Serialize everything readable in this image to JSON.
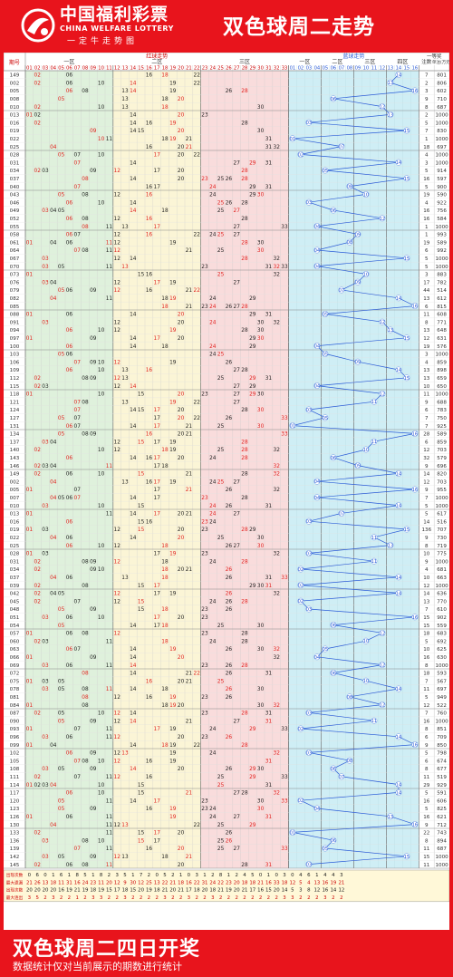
{
  "header": {
    "brand_cn": "中国福利彩票",
    "brand_en": "CHINA WELFARE LOTTERY",
    "slogan": "一定牛走势图",
    "title": "双色球周二走势"
  },
  "footer": {
    "headline": "双色球周二四日开奖",
    "note": "数据统计仅对当前展示的期数进行统计"
  },
  "colors": {
    "brand_red": "#e8141c",
    "zone1": "#dff1dc",
    "zone2": "#fbf5d6",
    "zone3": "#f9dcdc",
    "blue_zone": "#cfeef5",
    "blue_line": "#2a5bd7",
    "red_number": "#e0201e",
    "black_number": "#222222"
  },
  "chart_data": {
    "type": "table",
    "labels": {
      "issue": "期号",
      "red_trend": "红球走势",
      "blue_trend": "蓝球走势",
      "first_prize": "一等奖",
      "count": "注数",
      "amount": "单注(万元)",
      "zone1": "一区",
      "zone2": "二区",
      "zone3": "三区",
      "blue_z1": "一区",
      "blue_z2": "二区",
      "blue_z3": "三区",
      "blue_z4": "四区"
    },
    "issues": [
      "149",
      "002",
      "005",
      "008",
      "010",
      "013",
      "016",
      "019",
      "022",
      "025",
      "028",
      "031",
      "034",
      "037",
      "040",
      "043",
      "046",
      "049",
      "052",
      "055",
      "058",
      "061",
      "064",
      "067",
      "070",
      "073",
      "076",
      "079",
      "082",
      "085",
      "088",
      "091",
      "094",
      "097",
      "100",
      "103",
      "106",
      "109",
      "112",
      "115",
      "118",
      "121",
      "124",
      "127",
      "131",
      "134",
      "137",
      "140",
      "143",
      "146",
      "149",
      "002",
      "005",
      "007",
      "010",
      "013",
      "016",
      "019",
      "022",
      "025",
      "028",
      "031",
      "034",
      "037",
      "039",
      "042",
      "045",
      "048",
      "051",
      "054",
      "057",
      "060",
      "063",
      "066",
      "069",
      "072",
      "075",
      "078",
      "081",
      "084",
      "087",
      "090",
      "093",
      "096",
      "099",
      "102",
      "105",
      "108",
      "111",
      "114",
      "117",
      "120",
      "123",
      "126",
      "130",
      "133",
      "136",
      "139",
      "142",
      "145"
    ],
    "reds": [
      [
        2,
        6,
        16,
        18,
        22
      ],
      [
        2,
        6,
        10,
        14,
        19,
        22
      ],
      [
        6,
        8,
        13,
        14,
        19,
        26,
        28
      ],
      [
        5,
        13,
        18,
        20
      ],
      [
        2,
        10,
        13,
        18,
        30
      ],
      [
        1,
        2,
        14,
        20,
        23
      ],
      [
        2,
        14,
        16,
        19,
        28
      ],
      [
        9,
        14,
        15,
        20,
        30
      ],
      [
        10,
        11,
        18,
        19,
        21,
        31
      ],
      [
        4,
        16,
        20,
        21,
        31,
        32
      ],
      [
        5,
        7,
        10,
        17,
        20,
        22
      ],
      [
        7,
        14,
        27,
        29,
        31
      ],
      [
        2,
        3,
        9,
        12,
        17,
        20,
        28
      ],
      [
        8,
        14,
        20,
        23,
        25,
        26,
        28
      ],
      [
        7,
        16,
        17,
        24,
        29,
        31
      ],
      [
        5,
        8,
        12,
        16,
        24,
        29,
        30
      ],
      [
        6,
        10,
        14,
        25,
        26,
        28
      ],
      [
        3,
        4,
        5,
        14,
        18,
        25,
        27
      ],
      [
        6,
        8,
        12,
        16,
        28
      ],
      [
        8,
        11,
        13,
        17,
        27,
        33
      ],
      [
        6,
        7,
        12,
        16,
        22,
        24,
        25,
        27
      ],
      [
        1,
        4,
        6,
        11,
        12,
        19,
        28,
        30
      ],
      [
        7,
        8,
        11,
        12,
        21,
        25,
        30
      ],
      [
        3,
        12,
        14,
        28,
        32
      ],
      [
        3,
        5,
        11,
        13,
        23,
        31,
        32,
        33
      ],
      [
        1,
        15,
        16,
        25,
        32
      ],
      [
        3,
        4,
        12,
        17,
        19,
        27
      ],
      [
        5,
        6,
        9,
        12,
        16,
        21,
        22
      ],
      [
        4,
        11,
        18,
        19,
        24,
        29
      ],
      [
        18,
        21,
        23,
        24,
        26,
        27,
        28
      ],
      [
        1,
        6,
        14,
        20,
        29,
        31
      ],
      [
        3,
        12,
        20,
        24,
        30,
        32
      ],
      [
        6,
        10,
        12,
        19,
        28,
        30
      ],
      [
        1,
        9,
        14,
        17,
        20,
        29,
        30
      ],
      [
        6,
        14,
        18,
        24,
        29
      ],
      [
        5,
        6,
        24,
        25
      ],
      [
        7,
        9,
        10,
        12,
        19,
        26
      ],
      [
        6,
        10,
        13,
        16,
        27,
        28
      ],
      [
        2,
        8,
        9,
        12,
        13,
        25,
        29,
        31
      ],
      [
        2,
        3,
        12,
        14,
        27,
        29
      ],
      [
        1,
        10,
        15,
        20,
        23,
        27,
        29,
        30
      ],
      [
        7,
        8,
        13,
        19,
        22,
        27
      ],
      [
        7,
        14,
        15,
        17,
        20,
        28,
        30
      ],
      [
        5,
        7,
        17,
        20,
        22,
        26,
        33
      ],
      [
        6,
        7,
        14,
        17,
        21,
        25,
        30
      ],
      [
        5,
        8,
        9,
        16,
        20,
        21,
        33
      ],
      [
        3,
        4,
        12,
        15,
        17,
        19,
        28
      ],
      [
        2,
        10,
        12,
        18,
        19,
        25,
        28,
        32
      ],
      [
        6,
        14,
        16,
        17,
        20,
        24,
        28
      ],
      [
        2,
        3,
        4,
        11,
        17,
        18,
        32
      ],
      [
        2,
        6,
        10,
        15,
        21,
        28,
        32
      ],
      [
        4,
        13,
        16,
        17,
        19,
        24,
        25,
        27
      ],
      [
        1,
        7,
        17,
        21,
        26,
        32
      ],
      [
        4,
        5,
        6,
        7,
        14,
        17,
        23,
        28
      ],
      [
        3,
        10,
        15,
        24,
        26,
        31
      ],
      [
        1,
        11,
        14,
        17,
        20,
        21,
        24,
        27
      ],
      [
        6,
        15,
        16,
        23,
        24
      ],
      [
        1,
        3,
        12,
        15,
        20,
        23,
        28,
        29
      ],
      [
        4,
        6,
        14,
        20,
        25,
        30
      ],
      [
        6,
        10,
        12,
        18,
        26,
        27,
        30
      ],
      [
        1,
        3,
        17,
        19,
        23,
        32
      ],
      [
        2,
        8,
        9,
        12,
        18,
        24,
        28
      ],
      [
        2,
        9,
        10,
        18,
        20,
        21,
        26
      ],
      [
        4,
        6,
        13,
        18,
        26,
        31,
        33
      ],
      [
        2,
        8,
        15,
        17,
        29,
        30,
        31
      ],
      [
        2,
        4,
        5,
        12,
        17,
        19,
        26,
        32
      ],
      [
        2,
        7,
        12,
        15,
        24,
        26,
        28
      ],
      [
        5,
        9,
        15,
        18,
        23,
        26
      ],
      [
        3,
        6,
        10,
        17,
        20,
        23
      ],
      [
        5,
        14,
        17,
        18,
        25,
        30
      ],
      [
        1,
        6,
        8,
        12,
        23,
        28
      ],
      [
        2,
        3,
        11,
        18,
        24,
        28
      ],
      [
        6,
        7,
        14,
        19,
        26,
        30,
        32
      ],
      [
        1,
        9,
        14,
        20,
        32
      ],
      [
        3,
        6,
        11,
        14,
        23,
        26,
        28
      ],
      [
        8,
        14,
        21,
        22,
        26,
        31
      ],
      [
        1,
        3,
        5,
        16,
        20,
        21,
        25
      ],
      [
        3,
        5,
        8,
        11,
        14,
        18,
        26,
        30
      ],
      [
        8,
        12,
        16,
        19,
        23,
        26
      ],
      [
        1,
        8,
        18,
        19,
        20,
        30,
        32
      ],
      [
        2,
        5,
        10,
        12,
        14,
        23,
        28,
        31
      ],
      [
        5,
        9,
        12,
        14,
        21,
        27,
        31
      ],
      [
        1,
        7,
        11,
        17,
        19,
        24,
        29,
        33
      ],
      [
        3,
        6,
        11,
        12,
        20,
        23,
        26
      ],
      [
        1,
        4,
        14,
        18,
        19,
        22,
        28
      ],
      [
        6,
        9,
        12,
        13,
        19,
        24,
        32
      ],
      [
        7,
        8,
        10,
        12,
        16,
        19,
        31
      ],
      [
        3,
        5,
        9,
        14,
        20,
        26,
        29,
        30
      ],
      [
        2,
        7,
        11,
        12,
        16,
        25,
        29,
        33
      ],
      [
        1,
        2,
        3,
        4,
        10,
        15,
        25,
        31
      ],
      [
        6,
        10,
        15,
        21,
        27,
        28,
        32
      ],
      [
        5,
        11,
        14,
        17,
        23,
        30,
        33
      ],
      [
        5,
        9,
        16,
        19,
        23,
        24,
        30
      ],
      [
        1,
        6,
        11,
        19,
        24,
        27,
        31
      ],
      [
        4,
        11,
        12,
        13,
        22,
        25,
        29
      ],
      [
        2,
        11,
        15,
        17,
        20,
        26
      ],
      [
        3,
        8,
        10,
        15,
        17,
        25,
        26
      ],
      [
        7,
        11,
        16,
        20,
        25,
        27,
        33
      ],
      [
        3,
        5,
        9,
        12,
        13,
        18,
        21
      ],
      [
        2,
        6,
        8,
        11,
        20,
        28,
        31
      ]
    ],
    "blues": [
      14,
      13,
      16,
      6,
      12,
      13,
      3,
      15,
      1,
      7,
      2,
      14,
      5,
      15,
      8,
      10,
      3,
      6,
      12,
      4,
      9,
      8,
      4,
      15,
      4,
      10,
      9,
      7,
      14,
      16,
      5,
      12,
      13,
      15,
      4,
      5,
      9,
      14,
      15,
      4,
      12,
      11,
      3,
      5,
      1,
      16,
      11,
      10,
      6,
      9,
      14,
      4,
      16,
      4,
      14,
      7,
      3,
      15,
      11,
      13,
      3,
      11,
      2,
      14,
      2,
      14,
      2,
      3,
      16,
      6,
      12,
      10,
      5,
      4,
      12,
      6,
      10,
      14,
      8,
      12,
      3,
      11,
      2,
      14,
      16,
      3,
      8,
      6,
      7,
      14,
      14,
      2,
      4,
      13,
      16,
      1,
      6,
      5,
      15,
      3
    ],
    "prize_count": [
      7,
      2,
      3,
      9,
      8,
      2,
      5,
      7,
      1,
      18,
      4,
      3,
      5,
      16,
      5,
      19,
      4,
      16,
      16,
      1,
      1,
      19,
      6,
      5,
      5,
      3,
      17,
      44,
      13,
      6,
      11,
      8,
      13,
      12,
      19,
      3,
      4,
      13,
      13,
      10,
      11,
      9,
      6,
      7,
      7,
      28,
      6,
      12,
      32,
      9,
      14,
      12,
      9,
      7,
      5,
      5,
      14,
      136,
      9,
      8,
      10,
      9,
      4,
      10,
      12,
      14,
      13,
      7,
      15,
      15,
      18,
      5,
      10,
      16,
      8,
      18,
      7,
      11,
      5,
      12,
      7,
      16,
      8,
      6,
      9,
      5,
      6,
      8,
      11,
      29,
      5,
      16,
      5,
      16,
      9,
      22,
      8,
      11,
      15,
      11
    ],
    "prize_amount": [
      801,
      806,
      602,
      710,
      687,
      1000,
      1000,
      830,
      1000,
      697,
      1000,
      1000,
      914,
      597,
      900,
      590,
      922,
      756,
      584,
      1000,
      993,
      589,
      992,
      1000,
      1000,
      883,
      782,
      514,
      612,
      815,
      608,
      771,
      648,
      631,
      576,
      1000,
      859,
      898,
      659,
      650,
      1000,
      688,
      783,
      750,
      925,
      589,
      859,
      703,
      579,
      696,
      820,
      703,
      955,
      1000,
      1000,
      617,
      516,
      707,
      730,
      719,
      775,
      1000,
      681,
      663,
      1000,
      636,
      770,
      610,
      902,
      559,
      683,
      692,
      625,
      630,
      1000,
      593,
      567,
      697,
      949,
      522,
      760,
      1000,
      851,
      709,
      850,
      798,
      674,
      677,
      519,
      929,
      591,
      606,
      825,
      621,
      712,
      743,
      894,
      687,
      1000,
      1000
    ],
    "stats_labels": [
      "出现次数",
      "最大遗漏",
      "出现次数",
      "最大连出"
    ],
    "stats_rows": [
      [
        "0",
        "6",
        "0",
        "1",
        "6",
        "1",
        "8",
        "5",
        "1",
        "8",
        "2",
        "3",
        "5",
        "1",
        "7",
        "2",
        "0",
        "5",
        "2",
        "1",
        "0",
        "3",
        "1",
        "2",
        "8",
        "1",
        "2",
        "4",
        "5",
        "0",
        "1",
        "0",
        "3",
        "0",
        "4",
        "6",
        "1",
        "4",
        "4",
        "3"
      ],
      [
        "21",
        "26",
        "13",
        "18",
        "11",
        "31",
        "16",
        "24",
        "23",
        "11",
        "20",
        "12",
        "9",
        "30",
        "12",
        "25",
        "13",
        "22",
        "21",
        "18",
        "16",
        "22",
        "31",
        "24",
        "22",
        "23",
        "20",
        "18",
        "18",
        "21",
        "16",
        "33",
        "18",
        "12",
        "5",
        "4",
        "13",
        "16",
        "19",
        "21"
      ],
      [
        "20",
        "20",
        "20",
        "20",
        "16",
        "19",
        "21",
        "19",
        "18",
        "19",
        "15",
        "17",
        "18",
        "15",
        "20",
        "19",
        "18",
        "21",
        "20",
        "21",
        "17",
        "18",
        "20",
        "18",
        "21",
        "19",
        "20",
        "21",
        "17",
        "16",
        "15",
        "20",
        "14",
        "5",
        "3",
        "8",
        "12",
        "16",
        "14",
        "12"
      ],
      [
        "3",
        "5",
        "2",
        "3",
        "2",
        "2",
        "1",
        "2",
        "3",
        "3",
        "2",
        "2",
        "3",
        "2",
        "2",
        "2",
        "2",
        "3",
        "2",
        "2",
        "3",
        "2",
        "2",
        "3",
        "2",
        "2",
        "2",
        "2",
        "2",
        "2",
        "2",
        "2",
        "3",
        "3",
        "2",
        "2",
        "2",
        "3",
        "2",
        "2"
      ]
    ]
  }
}
